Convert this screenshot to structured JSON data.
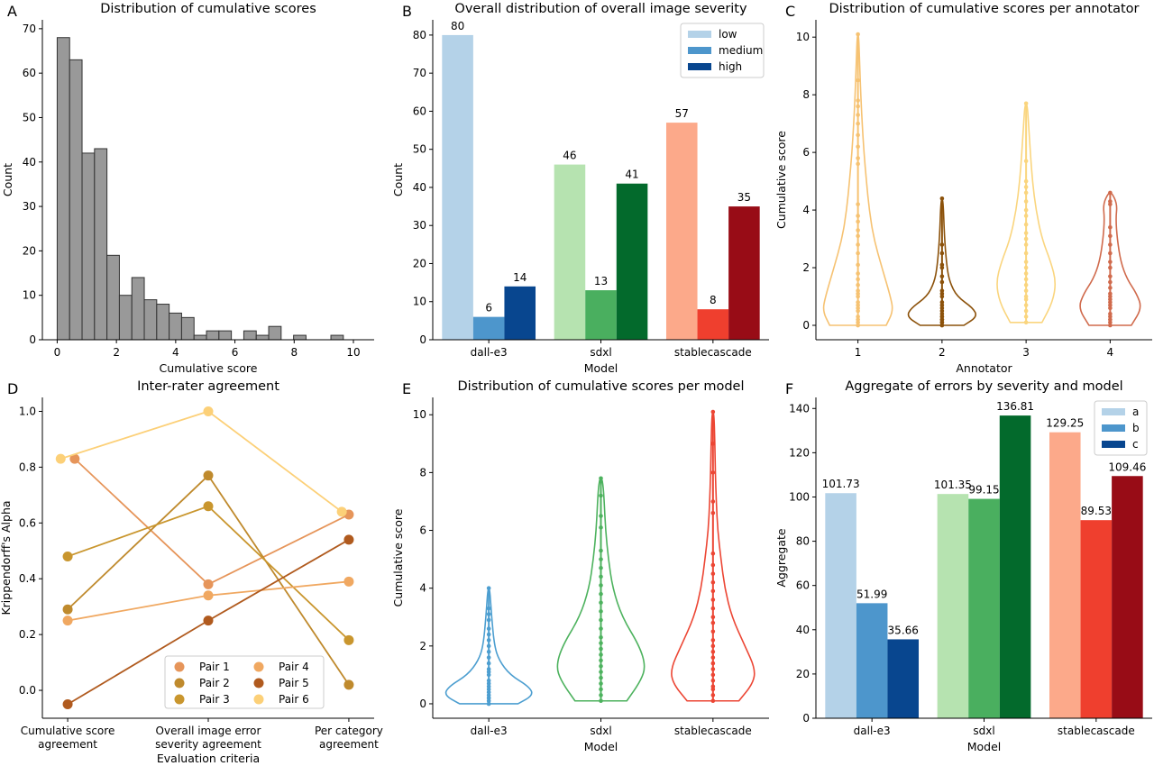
{
  "chart_data": [
    {
      "panel": "A",
      "type": "bar",
      "title": "Distribution of cumulative scores",
      "xlabel": "Cumulative score",
      "ylabel": "Count",
      "xlim": [
        -0.5,
        10.7
      ],
      "ylim": [
        0,
        72
      ],
      "xticks": [
        0,
        2,
        4,
        6,
        8,
        10
      ],
      "yticks": [
        0,
        10,
        20,
        30,
        40,
        50,
        60,
        70
      ],
      "bin_width": 0.42,
      "bins": [
        0,
        0.42,
        0.84,
        1.26,
        1.68,
        2.1,
        2.52,
        2.94,
        3.36,
        3.78,
        4.2,
        4.62,
        5.04,
        5.46,
        5.88,
        6.3,
        6.72,
        7.14,
        7.56,
        7.98,
        8.4,
        8.82,
        9.24,
        9.66
      ],
      "values": [
        68,
        63,
        42,
        43,
        19,
        10,
        14,
        9,
        8,
        6,
        5,
        1,
        2,
        2,
        0,
        2,
        1,
        3,
        0,
        1,
        0,
        0,
        1,
        0
      ],
      "color": "#999999"
    },
    {
      "panel": "B",
      "type": "bar",
      "title": "Overall distribution of overall image severity",
      "xlabel": "Model",
      "ylabel": "Count",
      "ylim": [
        0,
        84
      ],
      "yticks": [
        0,
        10,
        20,
        30,
        40,
        50,
        60,
        70,
        80
      ],
      "categories": [
        "dall-e3",
        "sdxl",
        "stablecascade"
      ],
      "series": [
        {
          "name": "low",
          "values": [
            80,
            46,
            57
          ]
        },
        {
          "name": "medium",
          "values": [
            6,
            13,
            8
          ]
        },
        {
          "name": "high",
          "values": [
            14,
            41,
            35
          ]
        }
      ],
      "legend_position": "top-right",
      "legend_colors": [
        "#b4d2e8",
        "#4d96cc",
        "#08468f"
      ],
      "colors": [
        [
          "#b4d2e8",
          "#4d96cc",
          "#08468f"
        ],
        [
          "#b6e3b0",
          "#4aaf5f",
          "#036a2c"
        ],
        [
          "#fca98a",
          "#ef3f2e",
          "#980c16"
        ]
      ]
    },
    {
      "panel": "C",
      "type": "violin",
      "title": "Distribution of cumulative scores per annotator",
      "xlabel": "Annotator",
      "ylabel": "Cumulative score",
      "ylim": [
        -0.5,
        10.6
      ],
      "yticks": [
        0,
        2,
        4,
        6,
        8,
        10
      ],
      "categories": [
        "1",
        "2",
        "3",
        "4"
      ],
      "colors": [
        "#f6c272",
        "#8c520b",
        "#fad57e",
        "#d06a4c"
      ],
      "violins": [
        {
          "min": 0,
          "max": 10.1,
          "profile": [
            [
              0,
              0.8
            ],
            [
              0.5,
              1.0
            ],
            [
              1,
              0.92
            ],
            [
              2,
              0.68
            ],
            [
              3,
              0.45
            ],
            [
              4,
              0.32
            ],
            [
              5,
              0.24
            ],
            [
              6,
              0.17
            ],
            [
              7,
              0.12
            ],
            [
              8,
              0.08
            ],
            [
              9,
              0.05
            ],
            [
              10.1,
              0.02
            ]
          ],
          "points": [
            0,
            0,
            0.1,
            0.2,
            0.3,
            0.5,
            0.6,
            0.7,
            0.8,
            1,
            1.1,
            1.2,
            1.4,
            1.6,
            1.8,
            2.1,
            2.5,
            2.8,
            3.1,
            3.3,
            3.6,
            3.8,
            4.2,
            5.6,
            5.8,
            6.2,
            6.6,
            7,
            7.3,
            7.6,
            7.8,
            8.5,
            10.1
          ]
        },
        {
          "min": 0,
          "max": 4.4,
          "profile": [
            [
              0,
              0.62
            ],
            [
              0.3,
              1.0
            ],
            [
              0.6,
              0.88
            ],
            [
              1,
              0.42
            ],
            [
              1.5,
              0.22
            ],
            [
              2,
              0.14
            ],
            [
              3,
              0.07
            ],
            [
              4.4,
              0.03
            ]
          ],
          "points": [
            0,
            0,
            0.1,
            0.1,
            0.2,
            0.2,
            0.3,
            0.3,
            0.4,
            0.5,
            0.6,
            0.7,
            0.8,
            1,
            1.1,
            1.2,
            1.5,
            1.7,
            2,
            2.1,
            2.5,
            2.8,
            4.4
          ]
        },
        {
          "min": 0.1,
          "max": 7.7,
          "profile": [
            [
              0.1,
              0.45
            ],
            [
              0.8,
              0.75
            ],
            [
              1.5,
              0.85
            ],
            [
              2.2,
              0.7
            ],
            [
              3,
              0.45
            ],
            [
              4,
              0.28
            ],
            [
              5,
              0.18
            ],
            [
              6,
              0.12
            ],
            [
              7,
              0.07
            ],
            [
              7.7,
              0.03
            ]
          ],
          "points": [
            0.1,
            0.3,
            0.5,
            0.7,
            0.9,
            1,
            1.2,
            1.4,
            1.6,
            1.8,
            2,
            2.2,
            2.5,
            2.8,
            3,
            3.2,
            3.5,
            3.8,
            4,
            4.3,
            4.6,
            4.8,
            5,
            5.7,
            7.7
          ]
        },
        {
          "min": 0,
          "max": 4.6,
          "profile": [
            [
              0,
              0.6
            ],
            [
              0.6,
              0.9
            ],
            [
              1.1,
              0.75
            ],
            [
              1.6,
              0.48
            ],
            [
              2.2,
              0.3
            ],
            [
              3,
              0.2
            ],
            [
              3.7,
              0.16
            ],
            [
              4.2,
              0.2
            ],
            [
              4.6,
              0.05
            ]
          ],
          "points": [
            0,
            0.1,
            0.2,
            0.3,
            0.4,
            0.6,
            0.7,
            0.8,
            0.9,
            1,
            1.1,
            1.3,
            1.5,
            1.7,
            2,
            2.2,
            2.5,
            2.8,
            3.1,
            3.4,
            4.2,
            4.3,
            4.6
          ]
        }
      ]
    },
    {
      "panel": "D",
      "type": "line",
      "title": "Inter-rater agreement",
      "xlabel": "Evaluation criteria",
      "ylabel": "Krippendorff's Alpha",
      "ylim": [
        -0.1,
        1.05
      ],
      "yticks": [
        0.0,
        0.2,
        0.4,
        0.6,
        0.8,
        1.0
      ],
      "categories": [
        "Cumulative score agreement",
        "Overall image error severity agreement",
        "Per category agreement"
      ],
      "category_lines": [
        [
          "Cumulative score",
          "agreement"
        ],
        [
          "Overall image error",
          "severity agreement"
        ],
        [
          "Per category",
          "agreement"
        ]
      ],
      "series": [
        {
          "name": "Pair 1",
          "color": "#e6955a",
          "x": [
            0.05,
            1,
            2
          ],
          "values": [
            0.83,
            0.38,
            0.63
          ]
        },
        {
          "name": "Pair 2",
          "color": "#bf8a2d",
          "x": [
            0,
            1,
            2
          ],
          "values": [
            0.29,
            0.77,
            0.02
          ]
        },
        {
          "name": "Pair 3",
          "color": "#c9962e",
          "x": [
            0,
            1,
            2
          ],
          "values": [
            0.48,
            0.66,
            0.18
          ]
        },
        {
          "name": "Pair 4",
          "color": "#f0a861",
          "x": [
            0,
            1,
            2
          ],
          "values": [
            0.25,
            0.34,
            0.39
          ]
        },
        {
          "name": "Pair 5",
          "color": "#b05a1e",
          "x": [
            0,
            1,
            2
          ],
          "values": [
            -0.05,
            0.25,
            0.54
          ]
        },
        {
          "name": "Pair 6",
          "color": "#fcd078",
          "x": [
            -0.05,
            1,
            1.95
          ],
          "values": [
            0.83,
            1.0,
            0.64
          ]
        }
      ],
      "legend_position": "lower-right"
    },
    {
      "panel": "E",
      "type": "violin",
      "title": "Distribution of cumulative scores per model",
      "xlabel": "Model",
      "ylabel": "Cumulative score",
      "ylim": [
        -0.5,
        10.6
      ],
      "yticks": [
        0,
        2,
        4,
        6,
        8,
        10
      ],
      "categories": [
        "dall-e3",
        "sdxl",
        "stablecascade"
      ],
      "colors": [
        "#4c9ed0",
        "#4db25e",
        "#ec4634"
      ],
      "violins": [
        {
          "min": 0,
          "max": 4.0,
          "profile": [
            [
              0,
              0.62
            ],
            [
              0.3,
              0.95
            ],
            [
              0.6,
              0.85
            ],
            [
              1,
              0.45
            ],
            [
              1.5,
              0.22
            ],
            [
              2,
              0.12
            ],
            [
              3,
              0.06
            ],
            [
              4,
              0.02
            ]
          ],
          "points": [
            0,
            0,
            0.1,
            0.2,
            0.2,
            0.3,
            0.4,
            0.5,
            0.6,
            0.7,
            0.8,
            1,
            1.1,
            1.2,
            1.4,
            1.6,
            1.8,
            2,
            2.2,
            2.4,
            2.6,
            2.9,
            3.1,
            3.3,
            4.0
          ]
        },
        {
          "min": 0.1,
          "max": 7.8,
          "profile": [
            [
              0.1,
              0.55
            ],
            [
              0.8,
              0.85
            ],
            [
              1.3,
              0.95
            ],
            [
              2,
              0.82
            ],
            [
              3,
              0.45
            ],
            [
              4,
              0.25
            ],
            [
              5,
              0.16
            ],
            [
              6,
              0.1
            ],
            [
              7,
              0.07
            ],
            [
              7.5,
              0.05
            ],
            [
              7.8,
              0.02
            ]
          ],
          "points": [
            0.1,
            0.3,
            0.5,
            0.7,
            0.9,
            1.1,
            1.3,
            1.5,
            1.7,
            1.9,
            2.1,
            2.3,
            2.6,
            2.9,
            3.2,
            3.5,
            3.8,
            4.1,
            4.4,
            4.7,
            5.0,
            5.3,
            6.1,
            6.5,
            7.2,
            7.7,
            7.8
          ]
        },
        {
          "min": 0.1,
          "max": 10.1,
          "profile": [
            [
              0.1,
              0.55
            ],
            [
              0.7,
              0.85
            ],
            [
              1.2,
              0.9
            ],
            [
              2,
              0.68
            ],
            [
              3,
              0.4
            ],
            [
              4,
              0.25
            ],
            [
              5,
              0.17
            ],
            [
              6,
              0.1
            ],
            [
              7,
              0.07
            ],
            [
              8,
              0.05
            ],
            [
              9,
              0.04
            ],
            [
              10.1,
              0.02
            ]
          ],
          "points": [
            0.1,
            0.3,
            0.5,
            0.6,
            0.8,
            1,
            1.2,
            1.4,
            1.6,
            1.8,
            2,
            2.2,
            2.5,
            2.8,
            3,
            3.3,
            3.6,
            3.9,
            4.2,
            4.5,
            4.8,
            5.2,
            6.6,
            7,
            8,
            9,
            10.1
          ]
        }
      ]
    },
    {
      "panel": "F",
      "type": "bar",
      "title": "Aggregate of errors by severity and model",
      "xlabel": "Model",
      "ylabel": "Aggregate",
      "ylim": [
        0,
        145
      ],
      "yticks": [
        0,
        20,
        40,
        60,
        80,
        100,
        120,
        140
      ],
      "categories": [
        "dall-e3",
        "sdxl",
        "stablecascade"
      ],
      "series": [
        {
          "name": "a",
          "values": [
            101.73,
            101.35,
            129.25
          ]
        },
        {
          "name": "b",
          "values": [
            51.99,
            99.15,
            89.53
          ]
        },
        {
          "name": "c",
          "values": [
            35.66,
            136.81,
            109.46
          ]
        }
      ],
      "legend_position": "top-right",
      "legend_colors": [
        "#b4d2e8",
        "#4d96cc",
        "#08468f"
      ],
      "colors": [
        [
          "#b4d2e8",
          "#4d96cc",
          "#08468f"
        ],
        [
          "#b6e3b0",
          "#4aaf5f",
          "#036a2c"
        ],
        [
          "#fca98a",
          "#ef3f2e",
          "#980c16"
        ]
      ]
    }
  ],
  "panel_letters": [
    "A",
    "B",
    "C",
    "D",
    "E",
    "F"
  ]
}
